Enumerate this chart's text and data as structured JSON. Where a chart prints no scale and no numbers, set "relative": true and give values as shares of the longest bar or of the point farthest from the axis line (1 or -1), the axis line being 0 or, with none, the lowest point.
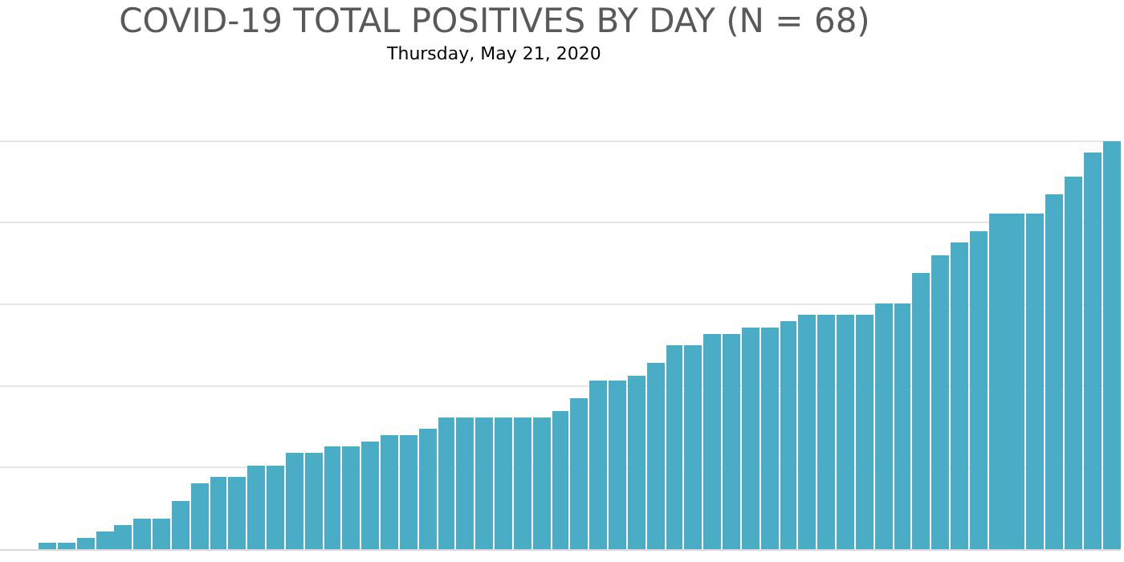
{
  "chart_data": {
    "type": "bar",
    "title": "COVID-19 TOTAL POSITIVES BY DAY (N = 68)",
    "subtitle": "Thursday, May 21, 2020",
    "relative": true,
    "grid": "y",
    "color": "#4bacc6",
    "categories": [
      null,
      null,
      null,
      null,
      null,
      null,
      null,
      null,
      null,
      null,
      null,
      null,
      null,
      null,
      null,
      null,
      null,
      null,
      null,
      null,
      null,
      null,
      null,
      null,
      null,
      null,
      null,
      null,
      null,
      null,
      null,
      null,
      null,
      null,
      null,
      null,
      null,
      null,
      null,
      null,
      null,
      null,
      null,
      null,
      null,
      null,
      null,
      null,
      null,
      null,
      null,
      null,
      null,
      null,
      null,
      null,
      null
    ],
    "values": [
      0.015,
      0.015,
      0.029,
      0.044,
      0.059,
      0.074,
      0.074,
      0.118,
      0.162,
      0.176,
      0.176,
      0.206,
      0.206,
      0.235,
      0.235,
      0.25,
      0.25,
      0.265,
      0.279,
      0.279,
      0.294,
      0.324,
      0.324,
      0.324,
      0.324,
      0.324,
      0.324,
      0.338,
      0.368,
      0.412,
      0.412,
      0.426,
      0.456,
      0.5,
      0.5,
      0.529,
      0.529,
      0.544,
      0.544,
      0.559,
      0.574,
      0.574,
      0.574,
      0.574,
      0.603,
      0.603,
      0.676,
      0.721,
      0.75,
      0.779,
      0.824,
      0.824,
      0.824,
      0.868,
      0.912,
      0.971,
      1
    ]
  }
}
